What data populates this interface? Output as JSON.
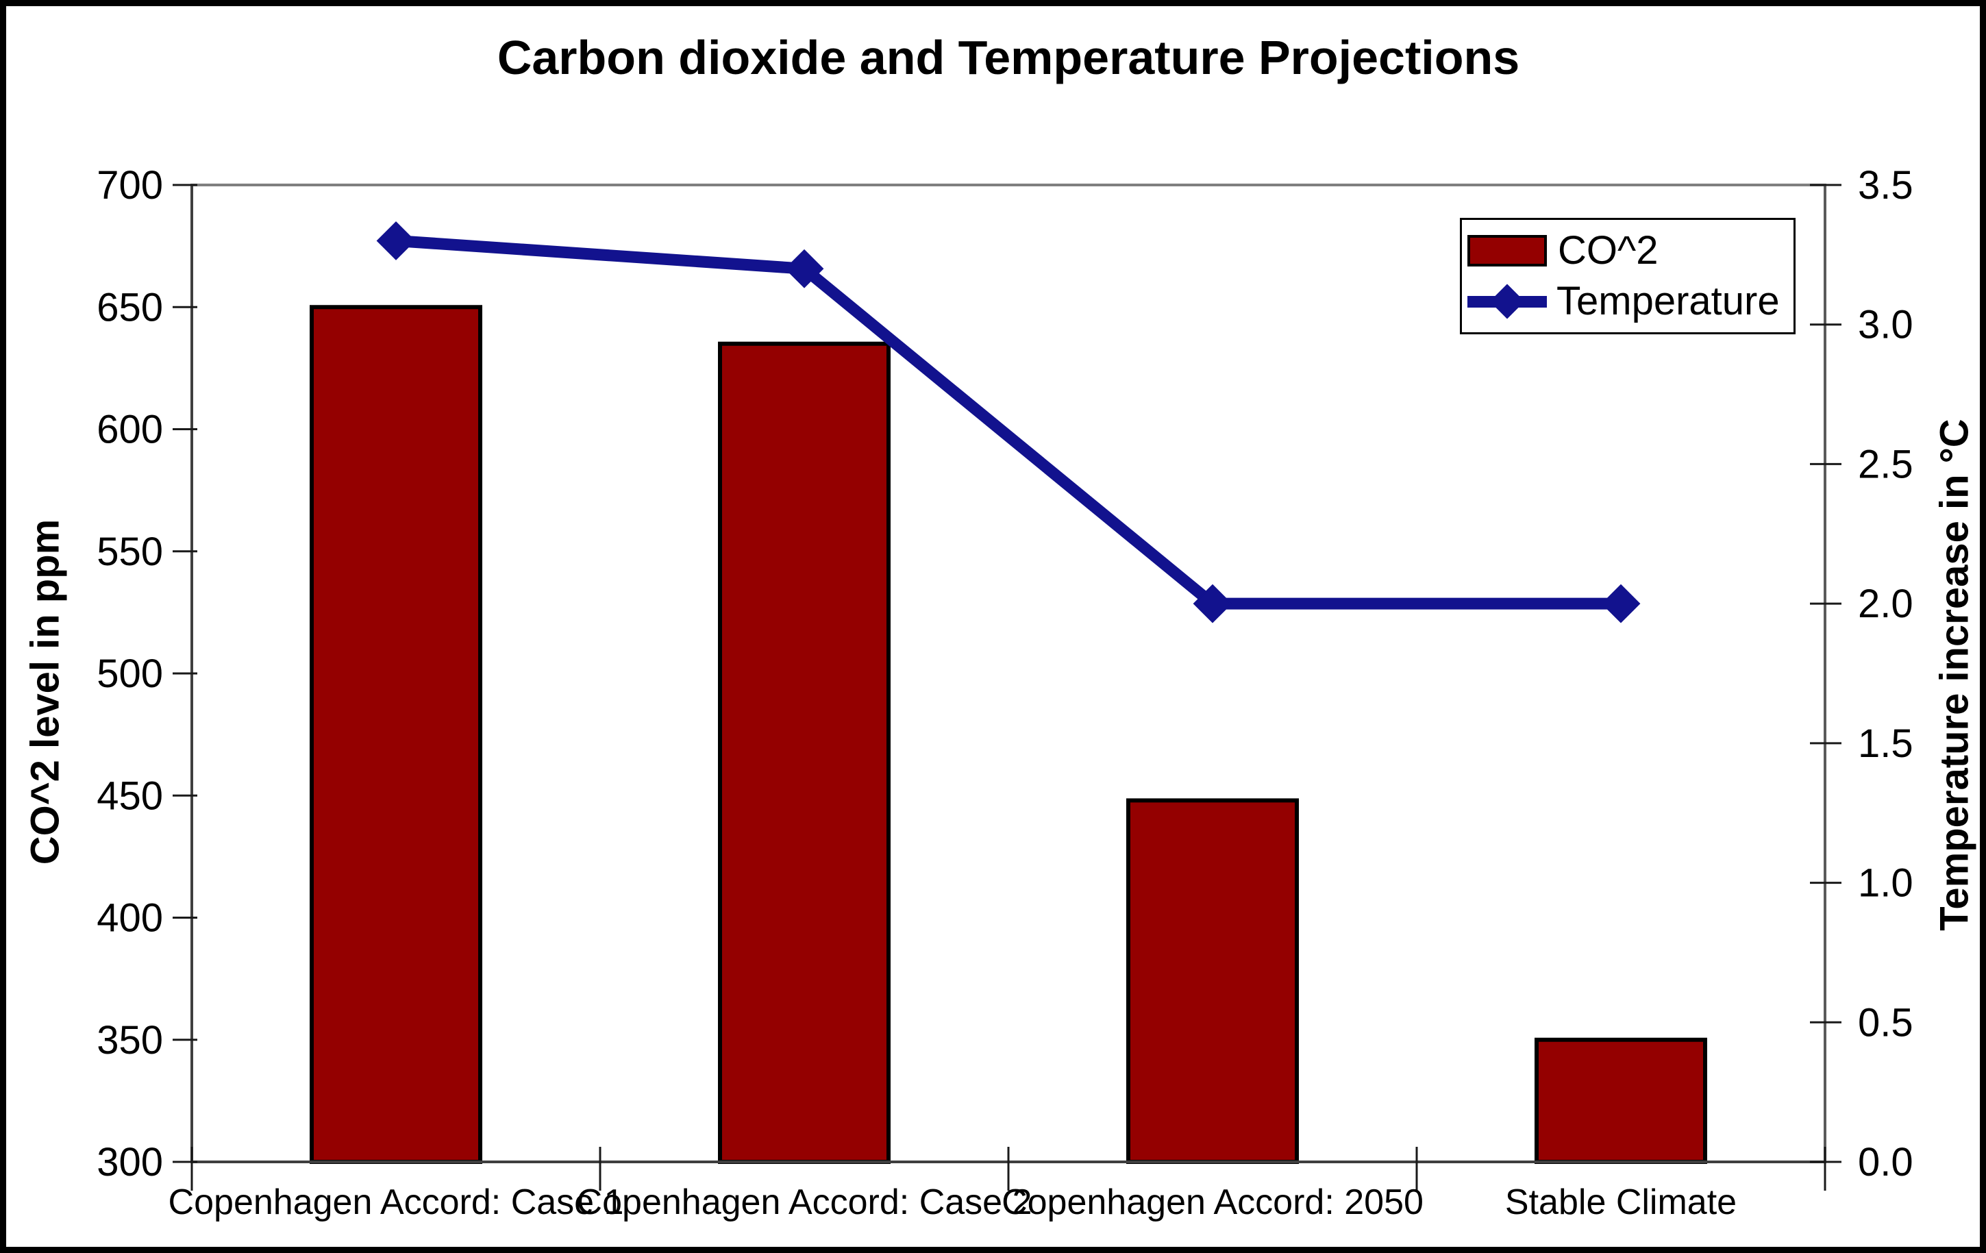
{
  "chart_data": {
    "type": "combo",
    "title": "Carbon dioxide and Temperature Projections",
    "categories": [
      "Copenhagen Accord: Case 1",
      "Copenhagen Accord: Case 2",
      "Copenhagen Accord: 2050",
      "Stable Climate"
    ],
    "series": [
      {
        "name": "CO^2",
        "type": "bar",
        "axis": "left",
        "color": "#940000",
        "border_color": "#000000",
        "values": [
          650,
          635,
          448,
          350
        ]
      },
      {
        "name": "Temperature",
        "type": "line",
        "axis": "right",
        "color": "#12128E",
        "marker": "diamond",
        "values": [
          3.3,
          3.2,
          2.0,
          2.0
        ]
      }
    ],
    "left_axis": {
      "label": "CO^2 level in ppm",
      "min": 300,
      "max": 700,
      "step": 50,
      "decimals": 0
    },
    "right_axis": {
      "label": "Temperature increase in °C",
      "min": 0.0,
      "max": 3.5,
      "step": 0.5,
      "decimals": 1
    },
    "legend": {
      "position": "top-right",
      "items": [
        "CO^2",
        "Temperature"
      ]
    },
    "grid": false,
    "plot_background": "#FFFFFF",
    "axis_line_color": "#3f3f3f",
    "plot_border_color": "#7f7f7f",
    "tick_color": "#1a1a1a",
    "text_color": "#000000"
  }
}
